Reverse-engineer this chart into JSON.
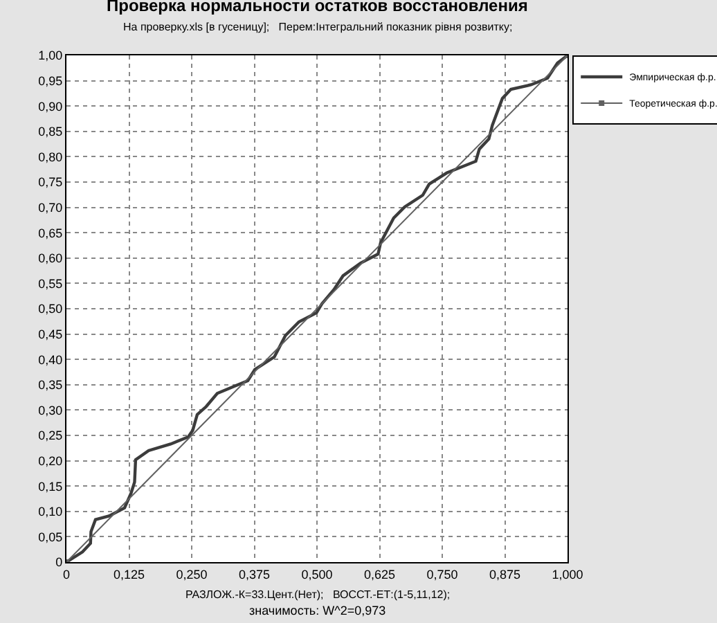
{
  "chart_data": {
    "type": "line",
    "title": "Проверка нормальности остатков восстановления",
    "subtitle": "На проверку.xls [в гусеницу];   Перем:Інтегральний показник рівня розвитку;",
    "xlabel": "РАЗЛОЖ.-К=33.Цент.(Нет);   ВОССТ.-ЕТ:(1-5,11,12);",
    "annotations": [
      "значимость: W^2=0,973"
    ],
    "series": [
      {
        "name": "Эмпирическая ф.р.",
        "color": "#3c3c3c",
        "marker": "none",
        "x": [
          0,
          0.032,
          0.048,
          0.049,
          0.058,
          0.085,
          0.116,
          0.129,
          0.136,
          0.138,
          0.164,
          0.208,
          0.243,
          0.252,
          0.261,
          0.279,
          0.301,
          0.34,
          0.362,
          0.376,
          0.415,
          0.437,
          0.464,
          0.499,
          0.51,
          0.534,
          0.552,
          0.587,
          0.622,
          0.627,
          0.653,
          0.675,
          0.711,
          0.724,
          0.759,
          0.817,
          0.824,
          0.843,
          0.85,
          0.87,
          0.887,
          0.927,
          0.96,
          0.98,
          1.0
        ],
        "values": [
          0,
          0.02,
          0.037,
          0.06,
          0.084,
          0.091,
          0.107,
          0.136,
          0.158,
          0.202,
          0.22,
          0.233,
          0.247,
          0.26,
          0.291,
          0.307,
          0.333,
          0.349,
          0.358,
          0.38,
          0.405,
          0.447,
          0.474,
          0.492,
          0.51,
          0.538,
          0.565,
          0.59,
          0.608,
          0.63,
          0.679,
          0.701,
          0.724,
          0.746,
          0.768,
          0.791,
          0.815,
          0.835,
          0.862,
          0.915,
          0.933,
          0.942,
          0.955,
          0.985,
          1.0
        ]
      },
      {
        "name": "Теоретическая ф.р.",
        "color": "#606060",
        "marker": "square",
        "x": [
          0,
          1
        ],
        "values": [
          0,
          1
        ]
      }
    ],
    "xlim": [
      0,
      1
    ],
    "ylim": [
      0,
      1
    ],
    "xticks": [
      0,
      {
        "value": 0.125,
        "label": "0,125"
      },
      {
        "value": 0.25,
        "label": "0,250"
      },
      {
        "value": 0.375,
        "label": "0,375"
      },
      {
        "value": 0.5,
        "label": "0,500"
      },
      {
        "value": 0.625,
        "label": "0,625"
      },
      {
        "value": 0.75,
        "label": "0,750"
      },
      {
        "value": 0.875,
        "label": "0,875"
      },
      {
        "value": 1,
        "label": "1,000"
      }
    ],
    "yticks": [
      0,
      {
        "value": 0.05,
        "label": "0,05"
      },
      {
        "value": 0.1,
        "label": "0,10"
      },
      {
        "value": 0.15,
        "label": "0,15"
      },
      {
        "value": 0.2,
        "label": "0,20"
      },
      {
        "value": 0.25,
        "label": "0,25"
      },
      {
        "value": 0.3,
        "label": "0,30"
      },
      {
        "value": 0.35,
        "label": "0,35"
      },
      {
        "value": 0.4,
        "label": "0,40"
      },
      {
        "value": 0.45,
        "label": "0,45"
      },
      {
        "value": 0.5,
        "label": "0,50"
      },
      {
        "value": 0.55,
        "label": "0,55"
      },
      {
        "value": 0.6,
        "label": "0,60"
      },
      {
        "value": 0.65,
        "label": "0,65"
      },
      {
        "value": 0.7,
        "label": "0,70"
      },
      {
        "value": 0.75,
        "label": "0,75"
      },
      {
        "value": 0.8,
        "label": "0,80"
      },
      {
        "value": 0.85,
        "label": "0,85"
      },
      {
        "value": 0.9,
        "label": "0,90"
      },
      {
        "value": 0.95,
        "label": "0,95"
      },
      {
        "value": 1,
        "label": "1,00"
      }
    ],
    "grid": true,
    "legend": "top right",
    "line_style": "solid"
  }
}
